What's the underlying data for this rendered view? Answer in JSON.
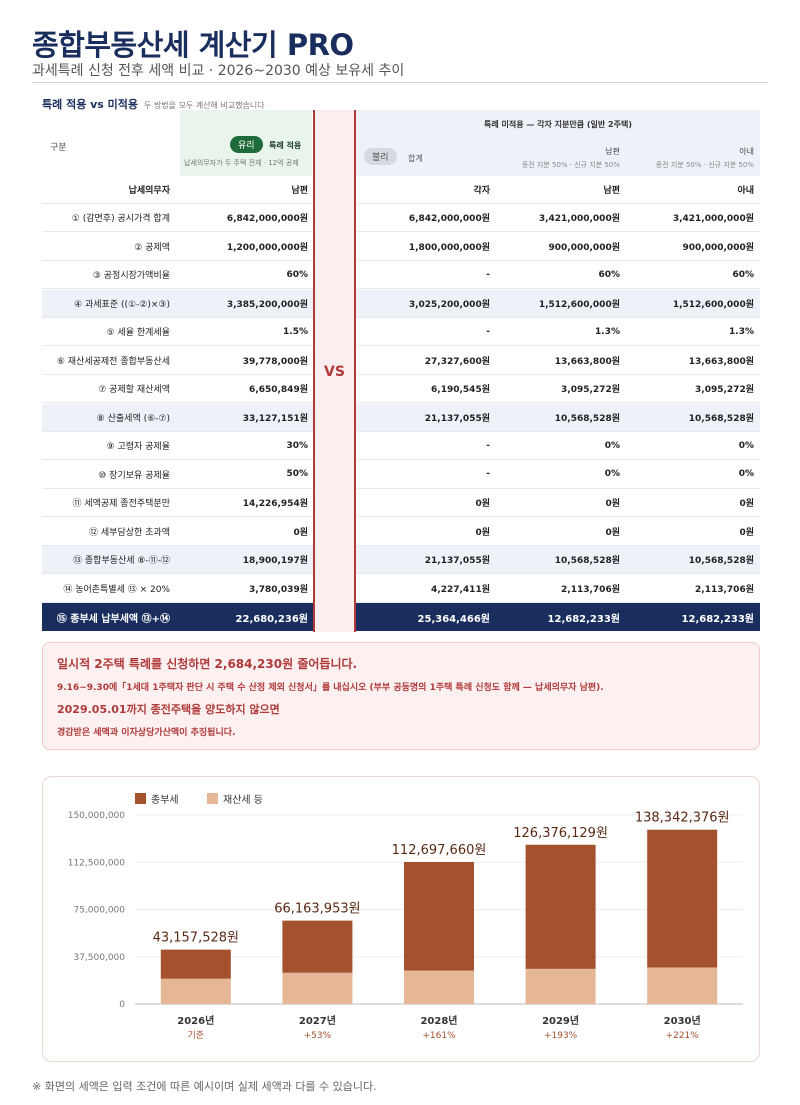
{
  "page": {
    "title": "종합부동산세 계산기 PRO",
    "subtitle": "과세특례 신청 전후 세액 비교 · 2026~2030 예상 보유세 추이"
  },
  "section": {
    "title": "특례 적용 vs 미적용",
    "note": "두 방법을 모두 계산해 비교했습니다"
  },
  "table": {
    "gubun": "구분",
    "colA": {
      "badge": "유리",
      "label": "특례 적용",
      "note": "납세의무자가 두 주택 전체 · 12억 공제"
    },
    "colB": {
      "title": "특례 미적용 — 각자 지분만큼 (일반 2주택)",
      "badge": "불리",
      "sum_label": "합계",
      "husband_label": "남편",
      "husband_note": "종전 지분 50% · 신규 지분 50%",
      "wife_label": "아내",
      "wife_note": "종전 지분 50% · 신규 지분 50%"
    },
    "vs": "VS",
    "header_row": {
      "label": "납세의무자",
      "a": "남편",
      "b1": "각자",
      "b2": "남편",
      "b3": "아내"
    },
    "rows": [
      {
        "label": "① (감면후) 공시가격 합계",
        "a": "6,842,000,000원",
        "b1": "6,842,000,000원",
        "b2": "3,421,000,000원",
        "b3": "3,421,000,000원"
      },
      {
        "label": "② 공제액",
        "a": "1,200,000,000원",
        "b1": "1,800,000,000원",
        "b2": "900,000,000원",
        "b3": "900,000,000원"
      },
      {
        "label": "③ 공정시장가액비율",
        "a": "60%",
        "b1": "-",
        "b2": "60%",
        "b3": "60%"
      },
      {
        "label": "④ 과세표준 ((①-②)×③)",
        "a": "3,385,200,000원",
        "b1": "3,025,200,000원",
        "b2": "1,512,600,000원",
        "b3": "1,512,600,000원"
      },
      {
        "label": "⑤ 세율 한계세율",
        "a": "1.5%",
        "b1": "-",
        "b2": "1.3%",
        "b3": "1.3%"
      },
      {
        "label": "⑥ 재산세공제전 종합부동산세",
        "a": "39,778,000원",
        "b1": "27,327,600원",
        "b2": "13,663,800원",
        "b3": "13,663,800원"
      },
      {
        "label": "⑦ 공제할 재산세액",
        "a": "6,650,849원",
        "b1": "6,190,545원",
        "b2": "3,095,272원",
        "b3": "3,095,272원"
      },
      {
        "label": "⑧ 산출세액 (⑥-⑦)",
        "a": "33,127,151원",
        "b1": "21,137,055원",
        "b2": "10,568,528원",
        "b3": "10,568,528원"
      },
      {
        "label": "⑨ 고령자 공제율",
        "a": "30%",
        "b1": "-",
        "b2": "0%",
        "b3": "0%"
      },
      {
        "label": "⑩ 장기보유 공제율",
        "a": "50%",
        "b1": "-",
        "b2": "0%",
        "b3": "0%"
      },
      {
        "label": "⑪ 세액공제 종전주택분만",
        "a": "14,226,954원",
        "b1": "0원",
        "b2": "0원",
        "b3": "0원"
      },
      {
        "label": "⑫ 세부담상한 초과액",
        "a": "0원",
        "b1": "0원",
        "b2": "0원",
        "b3": "0원"
      },
      {
        "label": "⑬ 종합부동산세 ⑧-⑪-⑫",
        "a": "18,900,197원",
        "b1": "21,137,055원",
        "b2": "10,568,528원",
        "b3": "10,568,528원"
      },
      {
        "label": "⑭ 농어촌특별세 ⑬ × 20%",
        "a": "3,780,039원",
        "b1": "4,227,411원",
        "b2": "2,113,706원",
        "b3": "2,113,706원"
      }
    ],
    "final_row": {
      "label": "⑮ 종부세 납부세액 ⑬+⑭",
      "a": "22,680,236원",
      "b1": "25,364,466원",
      "b2": "12,682,233원",
      "b3": "12,682,233원"
    }
  },
  "notice": {
    "line1": "일시적 2주택 특례를 신청하면 2,684,230원 줄어듭니다.",
    "line2": "9.16~9.30에「1세대 1주택자 판단 시 주택 수 산정 제외 신청서」를 내십시오 (부부 공동명의 1주택 특례 신청도 함께 — 납세의무자 남편).",
    "line3": "2029.05.01까지 종전주택을 양도하지 않으면",
    "line4": "경감받은 세액과 이자상당가산액이 추징됩니다."
  },
  "chart_data": {
    "type": "bar",
    "stacked": true,
    "categories": [
      "2026년",
      "2027년",
      "2028년",
      "2029년",
      "2030년"
    ],
    "sublabels": [
      "기준",
      "+53%",
      "+161%",
      "+193%",
      "+221%"
    ],
    "totals": [
      "43,157,528원",
      "66,163,953원",
      "112,697,660원",
      "126,376,129원",
      "138,342,376원"
    ],
    "series": [
      {
        "name": "재산세 등",
        "color": "#e6b796",
        "values": [
          20100000,
          24800000,
          26600000,
          27900000,
          29000000
        ]
      },
      {
        "name": "종부세",
        "color": "#a4522e",
        "values": [
          23057528,
          41363953,
          86097660,
          98476129,
          109342376
        ]
      }
    ],
    "ylim": [
      0,
      150000000
    ],
    "yticks": [
      0,
      37500000,
      75000000,
      112500000,
      150000000
    ],
    "ytick_labels": [
      "0",
      "37,500,000",
      "75,000,000",
      "112,500,000",
      "150,000,000"
    ],
    "legend": "top-left"
  },
  "footnote": "※ 화면의 세액은 입력 조건에 따른 예시이며 실제 세액과 다를 수 있습니다."
}
